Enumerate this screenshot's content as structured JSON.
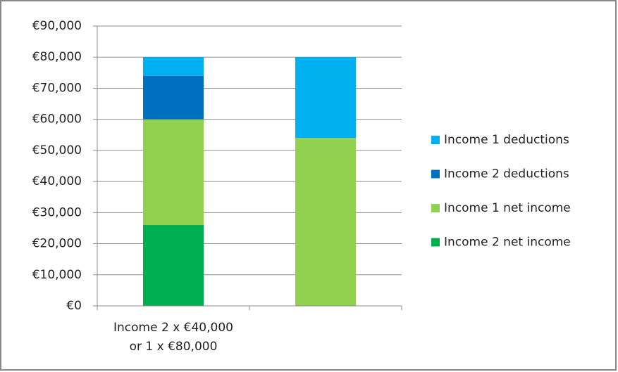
{
  "chart_data": {
    "type": "stacked_bar",
    "categories": [
      "Income 2 x €40,000\nor 1 x €80,000",
      null
    ],
    "series": [
      {
        "name": "Income 2 net income",
        "color": "#00b050",
        "values": [
          26000,
          0
        ]
      },
      {
        "name": "Income 1 net income",
        "color": "#92d050",
        "values": [
          34000,
          54000
        ]
      },
      {
        "name": "Income 2 deductions",
        "color": "#0070c0",
        "values": [
          14000,
          0
        ]
      },
      {
        "name": "Income 1 deductions",
        "color": "#00b0f0",
        "values": [
          6000,
          26000
        ]
      }
    ],
    "ylim": [
      0,
      90000
    ],
    "yticks": [
      {
        "value": 0,
        "label": "€0"
      },
      {
        "value": 10000,
        "label": "€10,000"
      },
      {
        "value": 20000,
        "label": "€20,000"
      },
      {
        "value": 30000,
        "label": "€30,000"
      },
      {
        "value": 40000,
        "label": "€40,000"
      },
      {
        "value": 50000,
        "label": "€50,000"
      },
      {
        "value": 60000,
        "label": "€60,000"
      },
      {
        "value": 70000,
        "label": "€70,000"
      },
      {
        "value": 80000,
        "label": "€80,000"
      },
      {
        "value": 90000,
        "label": "€90,000"
      }
    ],
    "grid": true,
    "legend": "right"
  }
}
